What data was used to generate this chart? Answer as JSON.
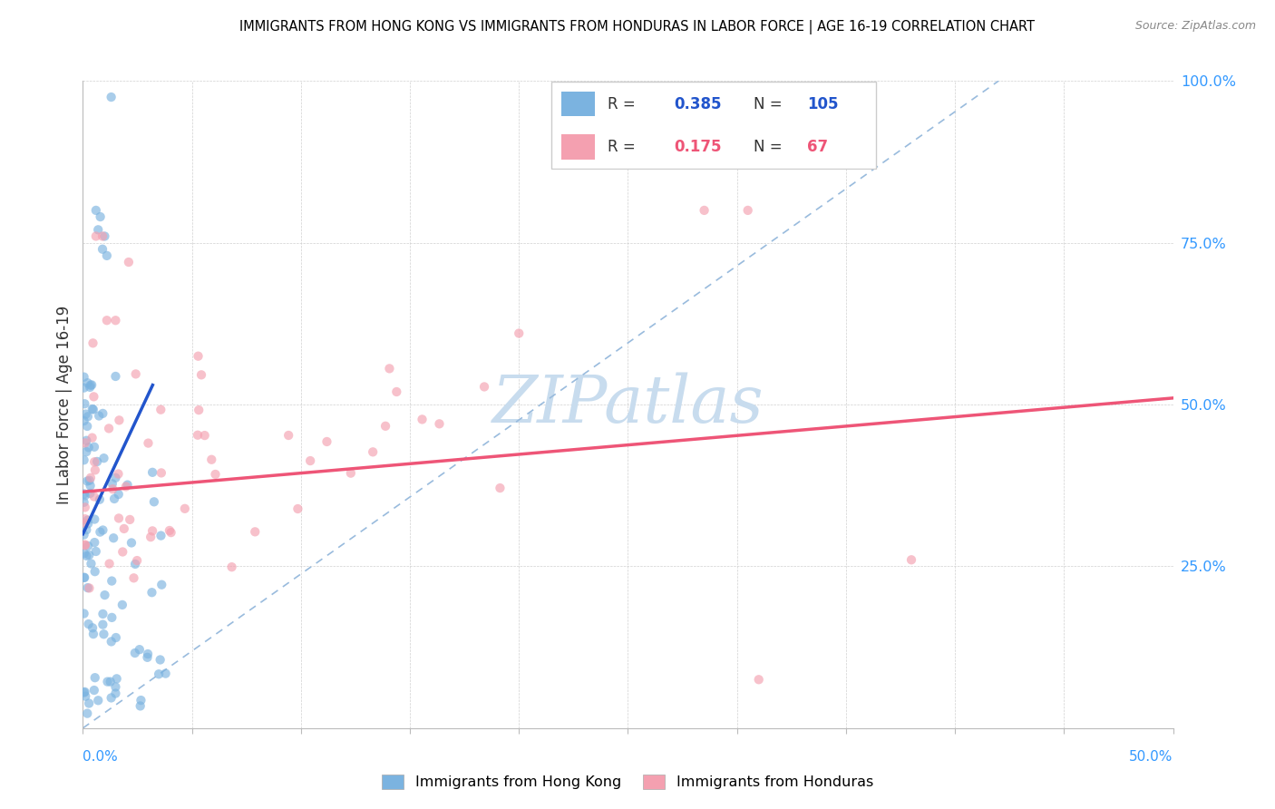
{
  "title": "IMMIGRANTS FROM HONG KONG VS IMMIGRANTS FROM HONDURAS IN LABOR FORCE | AGE 16-19 CORRELATION CHART",
  "source": "Source: ZipAtlas.com",
  "ylabel": "In Labor Force | Age 16-19",
  "xmin": 0.0,
  "xmax": 0.5,
  "ymin": 0.0,
  "ymax": 1.0,
  "hk_R": 0.385,
  "hk_N": 105,
  "hnd_R": 0.175,
  "hnd_N": 67,
  "hk_color": "#7BB3E0",
  "hnd_color": "#F4A0B0",
  "hk_line_color": "#2255CC",
  "hnd_line_color": "#EE5577",
  "ref_line_color": "#99BBDD",
  "watermark_color": "#C8DCEE",
  "legend_R_color_hk": "#2255CC",
  "legend_R_color_hnd": "#EE5577",
  "legend_N_color_hk": "#2255CC",
  "legend_N_color_hnd": "#EE5577"
}
